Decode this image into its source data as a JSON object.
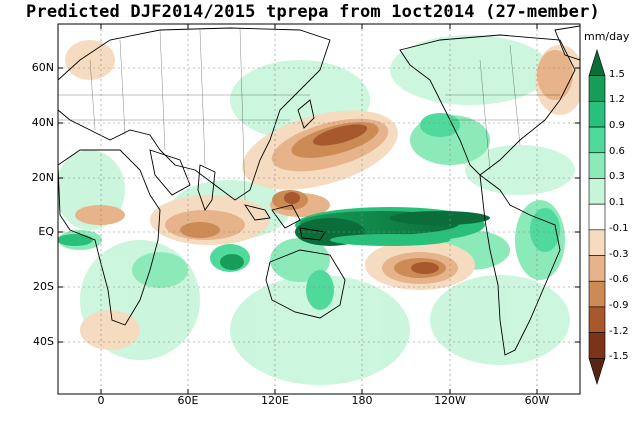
{
  "title": "Predicted DJF2014/2015 tprepa from 1oct2014 (27-member)",
  "map": {
    "latitude_labels": [
      "60N",
      "40N",
      "20N",
      "EQ",
      "20S",
      "40S"
    ],
    "longitude_labels": [
      "0",
      "60E",
      "120E",
      "180",
      "120W",
      "60W"
    ]
  },
  "colorbar": {
    "units": "mm/day",
    "levels": [
      "1.5",
      "1.2",
      "0.9",
      "0.6",
      "0.3",
      "0.1",
      "-0.1",
      "-0.3",
      "-0.6",
      "-0.9",
      "-1.2",
      "-1.5"
    ],
    "colors": [
      "#0b6e3a",
      "#169d58",
      "#28c07a",
      "#4fd99a",
      "#8ceab9",
      "#c6f5d9",
      "#ffffff",
      "#f5dcc0",
      "#e6b38a",
      "#cc8a55",
      "#a8582d",
      "#7c3419",
      "#5a2412"
    ]
  }
}
